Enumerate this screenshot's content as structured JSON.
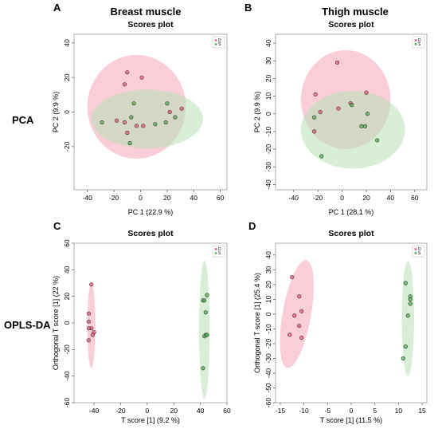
{
  "figure": {
    "sections": [
      {
        "letter": "A",
        "title": "Breast muscle"
      },
      {
        "letter": "B",
        "title": "Thigh muscle"
      },
      {
        "letter": "C",
        "title": ""
      },
      {
        "letter": "D",
        "title": ""
      }
    ],
    "row_labels": [
      "PCA",
      "OPLS-DA"
    ],
    "colors": {
      "D": "#e8577a",
      "S": "#4caf50",
      "D_fill": "#f4a6b8",
      "S_fill": "#b8e0b4"
    }
  },
  "chart_data": [
    {
      "type": "scatter",
      "panel": "A",
      "title": "Scores plot",
      "xlabel": "PC 1 (22.9 %)",
      "ylabel": "PC 2 (9.9 %)",
      "xlim": [
        -50,
        65
      ],
      "ylim": [
        -45,
        45
      ],
      "xticks": [
        -40,
        -20,
        0,
        20,
        40,
        60
      ],
      "yticks": [
        -20,
        0,
        20,
        40
      ],
      "legend": [
        "D",
        "S"
      ],
      "legend_position": "top-right",
      "series": [
        {
          "name": "D",
          "color": "#e8577a",
          "points": [
            [
              -10,
              23
            ],
            [
              1,
              20
            ],
            [
              -12,
              16
            ],
            [
              -18,
              -5
            ],
            [
              -12,
              -6
            ],
            [
              -10,
              -12
            ],
            [
              -3,
              -8
            ],
            [
              2,
              -8
            ],
            [
              22,
              0
            ],
            [
              31,
              2
            ]
          ]
        },
        {
          "name": "S",
          "color": "#4caf50",
          "points": [
            [
              -29,
              -6
            ],
            [
              -5,
              5
            ],
            [
              -7,
              -3
            ],
            [
              -8,
              -18
            ],
            [
              11,
              -7
            ],
            [
              19,
              -6
            ],
            [
              20,
              5
            ],
            [
              26,
              -3
            ]
          ]
        }
      ],
      "ellipses": [
        {
          "name": "D",
          "cx": -3,
          "cy": 3,
          "rx": 37,
          "ry": 30,
          "angle": 0
        },
        {
          "name": "S",
          "cx": 5,
          "cy": -4,
          "rx": 42,
          "ry": 17,
          "angle": 0
        }
      ]
    },
    {
      "type": "scatter",
      "panel": "B",
      "title": "Scores plot",
      "xlabel": "PC 1 (28.1 %)",
      "ylabel": "PC 2 (9.9 %)",
      "xlim": [
        -55,
        70
      ],
      "ylim": [
        -43,
        45
      ],
      "xticks": [
        -40,
        -20,
        0,
        20,
        40,
        60
      ],
      "yticks": [
        -40,
        -30,
        -20,
        -10,
        0,
        10,
        20,
        30,
        40
      ],
      "legend": [
        "D",
        "S"
      ],
      "legend_position": "top-right",
      "series": [
        {
          "name": "D",
          "color": "#e8577a",
          "points": [
            [
              -4,
              29
            ],
            [
              -22,
              11
            ],
            [
              20,
              12
            ],
            [
              -18,
              1
            ],
            [
              -3,
              3
            ],
            [
              7,
              6
            ],
            [
              -23,
              -10
            ]
          ]
        },
        {
          "name": "S",
          "color": "#4caf50",
          "points": [
            [
              -23,
              -2
            ],
            [
              8,
              5
            ],
            [
              16,
              -7
            ],
            [
              19,
              -7
            ],
            [
              21,
              0
            ],
            [
              29,
              -15
            ],
            [
              -17,
              -24
            ]
          ]
        }
      ],
      "ellipses": [
        {
          "name": "D",
          "cx": 3,
          "cy": 8,
          "rx": 37,
          "ry": 28,
          "angle": 0
        },
        {
          "name": "S",
          "cx": 9,
          "cy": -9,
          "rx": 43,
          "ry": 22,
          "angle": 0
        }
      ]
    },
    {
      "type": "scatter",
      "panel": "C",
      "title": "Scores plot",
      "xlabel": "T score [1] (9.2 %)",
      "ylabel": "Orthogonal T score [1] (22 %)",
      "xlim": [
        -55,
        60
      ],
      "ylim": [
        -60,
        60
      ],
      "xticks": [
        -40,
        -20,
        0,
        20,
        40,
        60
      ],
      "yticks": [
        -60,
        -40,
        -20,
        0,
        20,
        40,
        60
      ],
      "legend": [
        "D",
        "S"
      ],
      "legend_position": "top-right",
      "series": [
        {
          "name": "D",
          "color": "#e8577a",
          "points": [
            [
              -42,
              29
            ],
            [
              -44,
              7
            ],
            [
              -44,
              1
            ],
            [
              -42,
              -4
            ],
            [
              -44,
              -4
            ],
            [
              -40,
              -7
            ],
            [
              -41,
              -9
            ],
            [
              -44,
              -13
            ]
          ]
        },
        {
          "name": "S",
          "color": "#4caf50",
          "points": [
            [
              45,
              21
            ],
            [
              42,
              17
            ],
            [
              43,
              17
            ],
            [
              44,
              8
            ],
            [
              44,
              -9
            ],
            [
              43,
              -10
            ],
            [
              45,
              -9
            ],
            [
              42,
              -34
            ]
          ]
        }
      ],
      "ellipses": [
        {
          "name": "D",
          "cx": -42,
          "cy": -2,
          "rx": 3,
          "ry": 32,
          "angle": 0
        },
        {
          "name": "S",
          "cx": 43,
          "cy": -5,
          "rx": 4,
          "ry": 52,
          "angle": 0
        }
      ]
    },
    {
      "type": "scatter",
      "panel": "D",
      "title": "Scores plot",
      "xlabel": "T score [1] (11.5 %)",
      "ylabel": "Orthogonal T score [1] (25.4 %)",
      "xlim": [
        -16,
        16
      ],
      "ylim": [
        -60,
        48
      ],
      "xticks": [
        -15,
        -10,
        -5,
        0,
        5,
        10,
        15
      ],
      "yticks": [
        -60,
        -50,
        -40,
        -30,
        -20,
        -10,
        0,
        10,
        20,
        30,
        40
      ],
      "legend": [
        "D",
        "S"
      ],
      "legend_position": "top-right",
      "series": [
        {
          "name": "D",
          "color": "#e8577a",
          "points": [
            [
              -12.5,
              25
            ],
            [
              -11,
              12
            ],
            [
              -10.5,
              2
            ],
            [
              -11,
              -8
            ],
            [
              -12,
              -1
            ],
            [
              -10.5,
              -16
            ],
            [
              -13,
              -14
            ]
          ]
        },
        {
          "name": "S",
          "color": "#4caf50",
          "points": [
            [
              11.5,
              21
            ],
            [
              12.5,
              12
            ],
            [
              12.5,
              10
            ],
            [
              12.5,
              7
            ],
            [
              12,
              -1
            ],
            [
              11.5,
              -22
            ],
            [
              11,
              -30
            ]
          ]
        }
      ],
      "ellipses": [
        {
          "name": "D",
          "cx": -11.5,
          "cy": 0,
          "rx": 3,
          "ry": 37,
          "angle": 10
        },
        {
          "name": "S",
          "cx": 12,
          "cy": -3,
          "rx": 1.3,
          "ry": 39,
          "angle": 0
        }
      ]
    }
  ]
}
